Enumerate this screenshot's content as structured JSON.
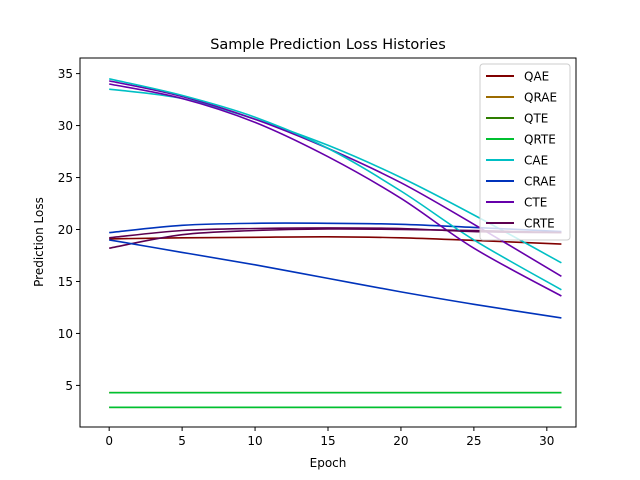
{
  "chart_data": {
    "type": "line",
    "title": "Sample Prediction Loss Histories",
    "xlabel": "Epoch",
    "ylabel": "Prediction Loss",
    "xlim": [
      -2.0,
      32.0
    ],
    "ylim": [
      1.0,
      36.5
    ],
    "xticks": [
      0,
      5,
      10,
      15,
      20,
      25,
      30
    ],
    "yticks": [
      5,
      10,
      15,
      20,
      25,
      30,
      35
    ],
    "grid": false,
    "legend_position": "top-right",
    "x": [
      0,
      5,
      10,
      15,
      20,
      25,
      31
    ],
    "series": [
      {
        "name": "QAE",
        "color": "#800000",
        "values": [
          19.1,
          19.2,
          19.25,
          19.3,
          19.2,
          18.95,
          18.6
        ]
      },
      {
        "name": "QRAE",
        "color": "#9c6b00",
        "values": [
          4.3,
          4.3,
          4.3,
          4.3,
          4.3,
          4.3,
          4.3
        ]
      },
      {
        "name": "QTE",
        "color": "#2e7d00",
        "values": [
          2.9,
          2.9,
          2.9,
          2.9,
          2.9,
          2.9,
          2.9
        ]
      },
      {
        "name": "QRTE",
        "color": "#00c030",
        "values": [
          4.3,
          4.3,
          4.3,
          4.3,
          4.3,
          4.3,
          4.3
        ]
      },
      {
        "name": "CAE",
        "color": "#00bfc4",
        "values": [
          33.5,
          32.6,
          30.6,
          28.1,
          25.0,
          21.4,
          16.8
        ]
      },
      {
        "name": "CRAE",
        "color": "#0033bb",
        "values": [
          19.7,
          20.4,
          20.6,
          20.6,
          20.5,
          20.2,
          19.8
        ]
      },
      {
        "name": "CTE",
        "color": "#6600aa",
        "values": [
          34.3,
          32.8,
          30.6,
          27.8,
          24.5,
          20.5,
          15.5
        ]
      },
      {
        "name": "CRTE",
        "color": "#5c0050",
        "values": [
          18.2,
          19.5,
          19.9,
          20.05,
          20.0,
          19.9,
          19.7
        ]
      }
    ],
    "extra_unlabeled_series": [
      {
        "color": "#00bfc4",
        "values": [
          34.5,
          32.9,
          30.8,
          27.8,
          23.7,
          19.0,
          14.2
        ]
      },
      {
        "color": "#6600aa",
        "values": [
          34.0,
          32.6,
          30.3,
          27.0,
          23.0,
          18.2,
          13.6
        ]
      },
      {
        "color": "#0033bb",
        "values": [
          19.0,
          17.8,
          16.6,
          15.3,
          14.0,
          12.8,
          11.5
        ]
      },
      {
        "color": "#5c0050",
        "values": [
          19.2,
          19.9,
          20.1,
          20.15,
          20.1,
          19.8,
          19.7
        ]
      },
      {
        "color": "#00c030",
        "values": [
          2.9,
          2.9,
          2.9,
          2.9,
          2.9,
          2.9,
          2.9
        ]
      }
    ]
  }
}
